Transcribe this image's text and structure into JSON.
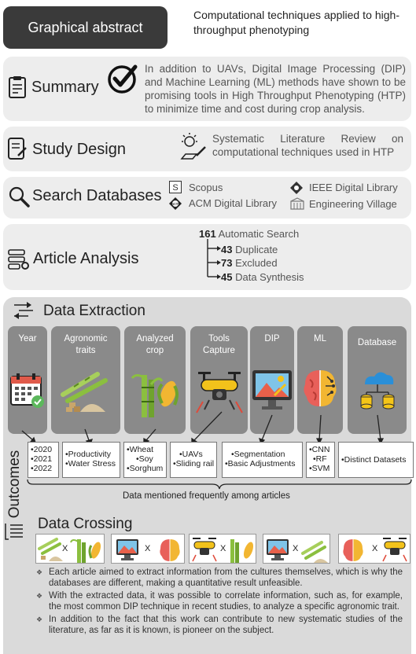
{
  "header": {
    "badge": "Graphical abstract",
    "title": "Computational techniques applied to high-throughput phenotyping"
  },
  "summary": {
    "label": "Summary",
    "text": "In addition to UAVs, Digital Image Processing (DIP) and Machine Learning (ML) methods have shown to be promising tools in High Throughput Phenotyping (HTP) to minimize time and cost during crop analysis."
  },
  "study_design": {
    "label": "Study Design",
    "text": "Systematic Literature Review on computational techniques used in HTP"
  },
  "search_databases": {
    "label": "Search Databases",
    "items": [
      "Scopus",
      "IEEE Digital Library",
      "ACM Digital Library",
      "Engineering Village"
    ]
  },
  "article_analysis": {
    "label": "Article Analysis",
    "automatic_count": "161",
    "automatic_label": "Automatic Search",
    "steps": [
      {
        "count": "43",
        "label": "Duplicate"
      },
      {
        "count": "73",
        "label": "Excluded"
      },
      {
        "count": "45",
        "label": "Data Synthesis"
      }
    ]
  },
  "data_extraction": {
    "label": "Data Extraction",
    "cards": [
      {
        "title": "Year"
      },
      {
        "title": "Agronomic traits"
      },
      {
        "title": "Analyzed crop"
      },
      {
        "title": "Tools Capture"
      },
      {
        "title": "DIP"
      },
      {
        "title": "ML"
      },
      {
        "title": "Database"
      }
    ]
  },
  "outcomes": {
    "label": "Outcomes",
    "boxes": [
      [
        "•2020",
        "•2021",
        "•2022"
      ],
      [
        "•Productivity",
        "•Water Stress"
      ],
      [
        "•Wheat",
        "•Soy",
        "•Sorghum"
      ],
      [
        "•UAVs",
        "•Sliding rail"
      ],
      [
        "•Segmentation",
        "•Basic Adjustments"
      ],
      [
        "•CNN",
        "•RF",
        "•SVM"
      ],
      [
        "•Distinct Datasets"
      ]
    ],
    "note": "Data mentioned frequently among articles"
  },
  "data_crossing": {
    "label": "Data Crossing",
    "x_symbol": "X"
  },
  "bullets": [
    "Each article aimed to extract information from the cultures themselves, which is why the databases are different, making a quantitative result unfeasible.",
    "With the extracted data, it was possible to correlate information, such as, for example, the most common DIP technique in recent studies, to analyze a specific agronomic trait.",
    "In addition to the fact that this work can contribute to new systematic studies of the literature, as far as it is known, is pioneer on the subject."
  ],
  "colors": {
    "panel": "#ededed",
    "card": "#8a8a8a",
    "badge": "#3a3a3a",
    "drone_yellow": "#f2c21b",
    "plant_green": "#8bbf3f",
    "brain_red": "#e8605a",
    "cloud_blue": "#2a8fd8",
    "db_yellow": "#f5c518"
  }
}
